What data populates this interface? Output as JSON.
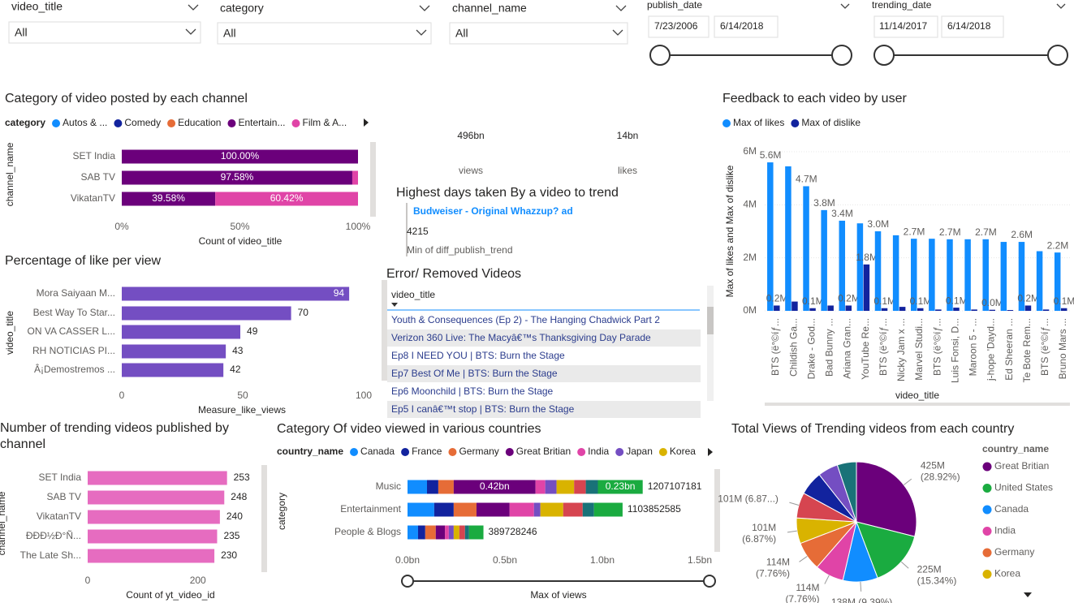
{
  "slicers": [
    {
      "label": "video_title",
      "value": "All"
    },
    {
      "label": "category",
      "value": "All"
    },
    {
      "label": "channel_name",
      "value": "All"
    },
    {
      "label": "publish_date",
      "start": "7/23/2006",
      "end": "6/14/2018"
    },
    {
      "label": "trending_date",
      "start": "11/14/2017",
      "end": "6/14/2018"
    }
  ],
  "cards": [
    {
      "value": "496bn",
      "label": "views"
    },
    {
      "value": "14bn",
      "label": "likes"
    }
  ],
  "trend_card": {
    "title": "Highest days taken By a video to trend",
    "video": "Budweiser - Original Whazzup? ad",
    "value": 4215,
    "label": "Min of diff_publish_trend"
  },
  "table": {
    "title": "Error/ Removed Videos",
    "header": "video_title",
    "rows": [
      "Youth & Consequences (Ep 2) - The Hanging Chadwick Part 2",
      "Verizon 360 Live: The Macyâ€™s Thanksgiving Day Parade",
      "Ep8 I NEED YOU | BTS: Burn the Stage",
      "Ep7 Best Of Me | BTS: Burn the Stage",
      "Ep6 Moonchild | BTS: Burn the Stage",
      "Ep5 I canâ€™t stop | BTS: Burn the Stage"
    ]
  },
  "chart_data": [
    {
      "type": "bar",
      "orientation": "horizontal",
      "stacked": true,
      "title": "Category of video posted by each channel",
      "legend_title": "category",
      "categories": [
        "SET India",
        "SAB TV",
        "VikatanTV"
      ],
      "series": [
        {
          "name": "Autos & ...",
          "color": "#118dff",
          "values": [
            0,
            0,
            0
          ]
        },
        {
          "name": "Comedy",
          "color": "#12239e",
          "values": [
            0,
            0,
            0
          ]
        },
        {
          "name": "Education",
          "color": "#e66c37",
          "values": [
            0,
            0,
            0
          ]
        },
        {
          "name": "Entertain...",
          "color": "#6b007b",
          "values": [
            100,
            97.58,
            39.58
          ],
          "value_labels": [
            "100.00%",
            "97.58%",
            "39.58%"
          ]
        },
        {
          "name": "Film & A...",
          "color": "#e044a7",
          "values": [
            0,
            2.42,
            60.42
          ],
          "value_labels": [
            null,
            null,
            "60.42%"
          ]
        }
      ],
      "x_label": "Count of video_title",
      "y_label": "channel_name",
      "xlim": [
        0,
        100
      ],
      "xticks": [
        {
          "value": 0,
          "label": "0%"
        },
        {
          "value": 50,
          "label": "50%"
        },
        {
          "value": 100,
          "label": "100%"
        }
      ]
    },
    {
      "type": "bar",
      "orientation": "horizontal",
      "title": "Percentage of like per view",
      "categories": [
        "Mora Saiyaan M...",
        "Best Way To Star...",
        "ON VA CASSER L...",
        "RH NOTICIAS PI...",
        "Â¡Demostremos ..."
      ],
      "values": [
        94,
        70,
        49,
        43,
        42
      ],
      "color": "#744ec2",
      "x_label": "Measure_like_views",
      "y_label": "video_title",
      "xlim": [
        0,
        100
      ],
      "xticks": [
        0,
        50,
        100
      ]
    },
    {
      "type": "bar",
      "orientation": "vertical",
      "title": "Feedback to each video by user",
      "categories": [
        "BTS (ë°©íƒ...",
        "Childish Ga...",
        "Drake - God...",
        "Bad Bunny ...",
        "Ariana Gran...",
        "YouTube Re...",
        "BTS (ë°©íƒ...",
        "Nicky Jam x ...",
        "Marvel Studi...",
        "BTS (ë°©íƒ...",
        "Luis Fonsi, D...",
        "Maroon 5 - ...",
        "j-hope 'Dayd...",
        "Ed Sheeran ...",
        "Te Bote Rem...",
        "BTS (ë°©íƒ...",
        "Bruno Mars ..."
      ],
      "series": [
        {
          "name": "Max of likes",
          "color": "#118dff",
          "values": [
            5600000,
            5450000,
            4700000,
            3800000,
            3400000,
            3300000,
            3000000,
            2850000,
            2720000,
            2720000,
            2700000,
            2700000,
            2700000,
            2600000,
            2600000,
            2250000,
            2200000
          ],
          "value_labels": [
            "5.6M",
            null,
            "4.7M",
            "3.8M",
            "3.4M",
            null,
            "3.0M",
            null,
            "2.7M",
            null,
            "2.7M",
            null,
            "2.7M",
            null,
            "2.6M",
            null,
            "2.2M"
          ]
        },
        {
          "name": "Max of dislike",
          "color": "#12239e",
          "values": [
            200000,
            350000,
            100000,
            200000,
            200000,
            1750000,
            100000,
            150000,
            100000,
            50000,
            120000,
            50000,
            40000,
            30000,
            200000,
            50000,
            100000
          ],
          "value_labels": [
            "0.2M",
            null,
            "0.1M",
            null,
            "0.2M",
            "1.8M",
            "0.1M",
            null,
            "0.1M",
            null,
            "0.1M",
            null,
            "0.0M",
            null,
            "0.2M",
            null,
            "0.1M"
          ]
        }
      ],
      "x_label": "video_title",
      "y_label": "Max of likes and Max of dislike",
      "ylim": [
        0,
        6000000
      ],
      "yticks": [
        {
          "value": 0,
          "label": "0M"
        },
        {
          "value": 2000000,
          "label": "2M"
        },
        {
          "value": 4000000,
          "label": "4M"
        },
        {
          "value": 6000000,
          "label": "6M"
        }
      ],
      "grid": true
    },
    {
      "type": "bar",
      "orientation": "horizontal",
      "title": "Number of trending videos published by channel",
      "categories": [
        "SET India",
        "SAB TV",
        "VikatanTV",
        "ÐÐÐ½Ð°Ñ...",
        "The Late Sh..."
      ],
      "values": [
        253,
        248,
        240,
        235,
        230
      ],
      "color": "#e66cc0",
      "x_label": "Count of yt_video_id",
      "y_label": "channel_name",
      "xlim": [
        0,
        280
      ],
      "xticks": [
        0,
        200
      ]
    },
    {
      "type": "bar",
      "orientation": "horizontal",
      "stacked": true,
      "title": "Category Of video viewed in various countries",
      "legend_title": "country_name",
      "categories": [
        "Music",
        "Entertainment",
        "People & Blogs"
      ],
      "series": [
        {
          "name": "Canada",
          "color": "#118dff",
          "values": [
            100000000,
            137000000,
            54000000
          ]
        },
        {
          "name": "France",
          "color": "#12239e",
          "values": [
            58000000,
            100000000,
            37000000
          ]
        },
        {
          "name": "Germany",
          "color": "#e66c37",
          "values": [
            79000000,
            117000000,
            54000000
          ]
        },
        {
          "name": "Great Britian",
          "color": "#6b007b",
          "values": [
            420000000,
            170000000,
            47000000
          ],
          "value_labels": [
            "0.42bn",
            null,
            null
          ]
        },
        {
          "name": "India",
          "color": "#e044a7",
          "values": [
            50000000,
            125000000,
            20000000
          ]
        },
        {
          "name": "Japan",
          "color": "#744ec2",
          "values": [
            58000000,
            33000000,
            25000000
          ]
        },
        {
          "name": "Korea",
          "color": "#d9b300",
          "values": [
            90000000,
            117000000,
            29000000
          ]
        },
        {
          "name": null,
          "color": "#d64550",
          "values": [
            60000000,
            100000000,
            29000000
          ]
        },
        {
          "name": null,
          "color": "#197278",
          "values": [
            62107181,
            58000000,
            21000000
          ]
        },
        {
          "name": null,
          "color": "#1aab40",
          "values": [
            230000000,
            146852585,
            73728246
          ],
          "value_labels": [
            "0.23bn",
            null,
            null
          ]
        }
      ],
      "totals": [
        1207107181,
        1103852585,
        389728246
      ],
      "x_label": "Max of views",
      "y_label": "category",
      "xlim": [
        0,
        1500000000
      ],
      "xticks": [
        {
          "value": 0,
          "label": "0.0bn"
        },
        {
          "value": 500000000,
          "label": "0.5bn"
        },
        {
          "value": 1000000000,
          "label": "1.0bn"
        },
        {
          "value": 1500000000,
          "label": "1.5bn"
        }
      ]
    },
    {
      "type": "pie",
      "title": "Total Views of Trending videos from each country",
      "legend_title": "country_name",
      "categories": [
        "Great Britian",
        "United States",
        "Canada",
        "India",
        "Germany",
        "Korea",
        null,
        null,
        null,
        null
      ],
      "values": [
        425000000,
        225000000,
        138000000,
        114000000,
        114000000,
        101000000,
        101000000,
        95000000,
        80000000,
        76000000
      ],
      "colors": [
        "#6b007b",
        "#1aab40",
        "#118dff",
        "#e044a7",
        "#e66c37",
        "#d9b300",
        "#d64550",
        "#12239e",
        "#744ec2",
        "#197278"
      ],
      "value_labels": [
        [
          "425M",
          "(28.92%)"
        ],
        [
          "225M",
          "(15.34%)"
        ],
        [
          "138M (9.39%)"
        ],
        [
          "114M",
          "(7.76%)"
        ],
        [
          "114M",
          "(7.76%)"
        ],
        [
          "101M",
          "(6.87%)"
        ],
        [
          "101M (6.87...)"
        ],
        null,
        null,
        null
      ]
    }
  ]
}
